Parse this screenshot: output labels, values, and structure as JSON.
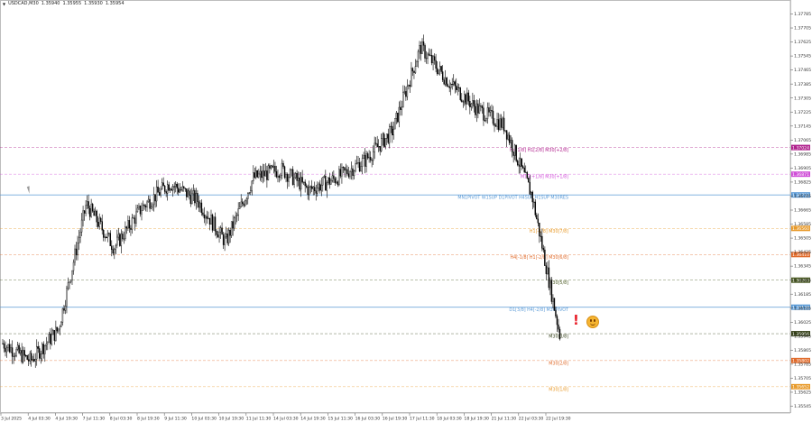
{
  "header": {
    "symbol": "USDCAD,M30",
    "prices": [
      "1.35940",
      "1.35955",
      "1.35930",
      "1.35954"
    ]
  },
  "colors": {
    "background": "#ffffff",
    "candle": "#000000",
    "grid": "#d9d9d9",
    "axis_text": "#333333",
    "current_price_badge": "#333f17"
  },
  "icons": {
    "alert": "!",
    "smile": "smiley-face-icon"
  },
  "chart_data": {
    "type": "line",
    "instrument": "USDCAD",
    "timeframe": "M30",
    "ylim": [
      1.3554,
      1.3779
    ],
    "y_ticks": [
      "1.37785",
      "1.37705",
      "1.37625",
      "1.37545",
      "1.37465",
      "1.37385",
      "1.37305",
      "1.37225",
      "1.37145",
      "1.37065",
      "1.36985",
      "1.36905",
      "1.36825",
      "1.36745",
      "1.36665",
      "1.36585",
      "1.36505",
      "1.36425",
      "1.36345",
      "1.36265",
      "1.36185",
      "1.36105",
      "1.36025",
      "1.35945",
      "1.35865",
      "1.35785",
      "1.35705",
      "1.35625",
      "1.35545"
    ],
    "x_ticks": [
      "3 Jul 2025",
      "4 Jul 03:30",
      "4 Jul 19:30",
      "7 Jul 11:30",
      "8 Jul 03:30",
      "8 Jul 19:30",
      "9 Jul 11:30",
      "10 Jul 03:30",
      "10 Jul 19:30",
      "11 Jul 11:30",
      "14 Jul 03:30",
      "14 Jul 19:30",
      "15 Jul 11:30",
      "16 Jul 03:30",
      "16 Jul 19:30",
      "17 Jul 11:30",
      "18 Jul 03:30",
      "18 Jul 19:30",
      "21 Jul 11:30",
      "22 Jul 03:30",
      "22 Jul 19:30"
    ],
    "series": [
      {
        "x": [
          "3 Jul 2025",
          "4 Jul 03:30",
          "4 Jul 19:30",
          "7 Jul 11:30",
          "8 Jul 03:30",
          "8 Jul 19:30",
          "9 Jul 11:30",
          "10 Jul 03:30",
          "10 Jul 19:30",
          "11 Jul 11:30",
          "14 Jul 03:30",
          "14 Jul 19:30",
          "15 Jul 11:30",
          "16 Jul 03:30",
          "16 Jul 19:30",
          "17 Jul 11:30",
          "18 Jul 03:30",
          "18 Jul 19:30",
          "21 Jul 11:30",
          "22 Jul 03:30",
          "22 Jul 19:30"
        ],
        "values": [
          1.359,
          1.358,
          1.3598,
          1.367,
          1.3645,
          1.3668,
          1.3682,
          1.3672,
          1.3648,
          1.3685,
          1.369,
          1.3678,
          1.3685,
          1.3695,
          1.3712,
          1.376,
          1.374,
          1.3725,
          1.3715,
          1.3675,
          1.3595
        ]
      }
    ],
    "levels": [
      {
        "label": "H4[1/8] H1[2/8] M30[+2/8]",
        "badge": "1.37024",
        "value": 1.37024,
        "color": "#b0208c",
        "style": "dashed"
      },
      {
        "label": "M15[+1/8] M30[+1/8]",
        "badge": "1.36871",
        "value": 1.36871,
        "color": "#d04fd8",
        "style": "dashed"
      },
      {
        "label": "MN1PIVOT W1SUP D1PIVOT H4SUP H1SUP M30RES",
        "badge": "1.36752",
        "value": 1.36752,
        "color": "#5a9ad6",
        "style": "solid"
      },
      {
        "label": "H1[-1/8] M30[7/8]",
        "badge": "1.36560",
        "value": 1.3656,
        "color": "#e89a2a",
        "style": "dashed"
      },
      {
        "label": "H4[-1/8] H1[-2/8] M30[6/8]",
        "badge": "1.36410",
        "value": 1.3641,
        "color": "#e06a2a",
        "style": "dashed"
      },
      {
        "label": "M30[5/8]",
        "badge": "1.36263",
        "value": 1.36263,
        "color": "#4a5a22",
        "style": "dashed"
      },
      {
        "label": "D1[3/8] H4[-2/8] M30PIVOT",
        "badge": "1.36108",
        "value": 1.36108,
        "color": "#5a9ad6",
        "style": "solid"
      },
      {
        "label": "M30[3/8]",
        "badge": "1.35956",
        "value": 1.35956,
        "color": "#333f17",
        "style": "dashed"
      },
      {
        "label": "M30[2/8]",
        "badge": "1.35802",
        "value": 1.35802,
        "color": "#e06a2a",
        "style": "dashed"
      },
      {
        "label": "M30[1/8]",
        "badge": "1.35652",
        "value": 1.35652,
        "color": "#e89a2a",
        "style": "dashed"
      }
    ],
    "current_price": "1.35956",
    "grid": false,
    "legend": "none"
  }
}
